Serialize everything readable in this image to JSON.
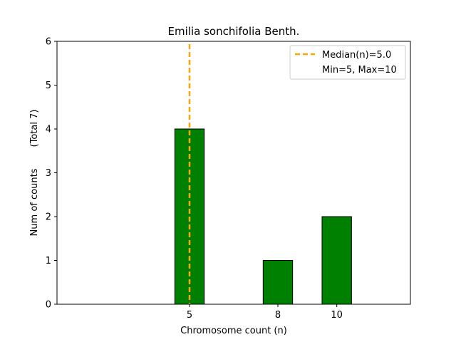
{
  "chart_data": {
    "type": "bar",
    "title": "Emilia sonchifolia Benth.",
    "xlabel": "Chromosome count (n)",
    "ylabel": "Num of counts",
    "ylabel_total": "(Total 7)",
    "x": [
      5,
      8,
      10
    ],
    "values": [
      4,
      1,
      2
    ],
    "xticks": [
      "5",
      "8",
      "10"
    ],
    "yticks": [
      "0",
      "1",
      "2",
      "3",
      "4",
      "5",
      "6"
    ],
    "xlim": [
      0.5,
      12.5
    ],
    "ylim": [
      0,
      6
    ],
    "bar_color": "#008000",
    "bar_edge_color": "#000000",
    "median": {
      "value": 5.0,
      "color": "#ffa500"
    },
    "legend": {
      "position": "top-right",
      "entries": [
        "Median(n)=5.0",
        "Min=5, Max=10"
      ]
    },
    "grid": false
  }
}
